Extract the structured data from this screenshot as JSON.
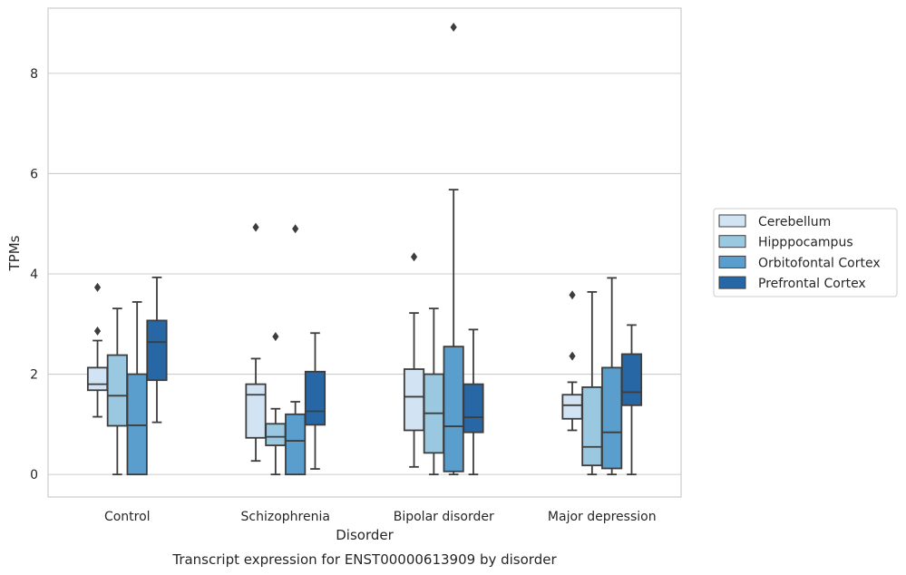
{
  "chart_data": {
    "type": "box",
    "caption": "Transcript expression for ENST00000613909 by disorder",
    "xlabel": "Disorder",
    "ylabel": "TPMs",
    "ylim": [
      -0.45,
      9.3
    ],
    "yticks": [
      0,
      2,
      4,
      6,
      8
    ],
    "categories": [
      "Control",
      "Schizophrenia",
      "Bipolar disorder",
      "Major depression"
    ],
    "grid": "horizontal",
    "legend_position": "right",
    "series": [
      {
        "name": "Cerebellum",
        "color": "#d2e3f3",
        "boxes": [
          {
            "whislo": 1.15,
            "q1": 1.68,
            "med": 1.8,
            "q3": 2.13,
            "whishi": 2.67,
            "fliers": [
              2.86,
              3.73
            ]
          },
          {
            "whislo": 0.27,
            "q1": 0.73,
            "med": 1.59,
            "q3": 1.8,
            "whishi": 2.31,
            "fliers": [
              4.93
            ]
          },
          {
            "whislo": 0.15,
            "q1": 0.88,
            "med": 1.55,
            "q3": 2.1,
            "whishi": 3.22,
            "fliers": [
              4.34
            ]
          },
          {
            "whislo": 0.88,
            "q1": 1.11,
            "med": 1.38,
            "q3": 1.59,
            "whishi": 1.84,
            "fliers": [
              2.36,
              3.58
            ]
          }
        ]
      },
      {
        "name": "Hipppocampus",
        "color": "#9ac8e0",
        "boxes": [
          {
            "whislo": 0.0,
            "q1": 0.97,
            "med": 1.57,
            "q3": 2.38,
            "whishi": 3.31,
            "fliers": []
          },
          {
            "whislo": 0.0,
            "q1": 0.58,
            "med": 0.75,
            "q3": 1.01,
            "whishi": 1.31,
            "fliers": [
              2.75
            ]
          },
          {
            "whislo": 0.0,
            "q1": 0.43,
            "med": 1.22,
            "q3": 2.0,
            "whishi": 3.31,
            "fliers": []
          },
          {
            "whislo": 0.0,
            "q1": 0.18,
            "med": 0.55,
            "q3": 1.74,
            "whishi": 3.64,
            "fliers": []
          }
        ]
      },
      {
        "name": "Orbitofontal Cortex",
        "color": "#5a9ecd",
        "boxes": [
          {
            "whislo": 0.0,
            "q1": 0.0,
            "med": 0.98,
            "q3": 2.0,
            "whishi": 3.44,
            "fliers": []
          },
          {
            "whislo": 0.0,
            "q1": 0.0,
            "med": 0.67,
            "q3": 1.2,
            "whishi": 1.45,
            "fliers": [
              4.9
            ]
          },
          {
            "whislo": 0.0,
            "q1": 0.06,
            "med": 0.96,
            "q3": 2.55,
            "whishi": 5.68,
            "fliers": [
              8.92
            ]
          },
          {
            "whislo": 0.0,
            "q1": 0.12,
            "med": 0.84,
            "q3": 2.13,
            "whishi": 3.92,
            "fliers": []
          }
        ]
      },
      {
        "name": "Prefrontal Cortex",
        "color": "#2767a6",
        "boxes": [
          {
            "whislo": 1.04,
            "q1": 1.88,
            "med": 2.64,
            "q3": 3.07,
            "whishi": 3.93,
            "fliers": []
          },
          {
            "whislo": 0.11,
            "q1": 0.99,
            "med": 1.26,
            "q3": 2.05,
            "whishi": 2.82,
            "fliers": []
          },
          {
            "whislo": 0.0,
            "q1": 0.84,
            "med": 1.14,
            "q3": 1.8,
            "whishi": 2.89,
            "fliers": []
          },
          {
            "whislo": 0.0,
            "q1": 1.38,
            "med": 1.64,
            "q3": 2.4,
            "whishi": 2.98,
            "fliers": []
          }
        ]
      }
    ]
  }
}
